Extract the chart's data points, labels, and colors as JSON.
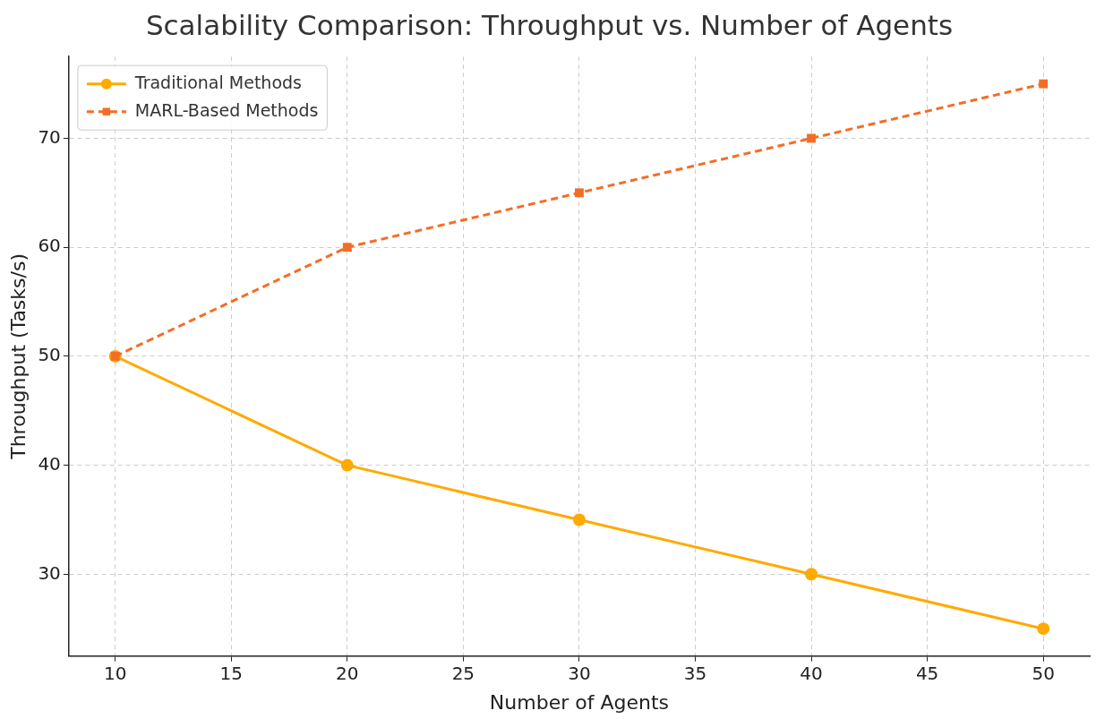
{
  "chart_data": {
    "type": "line",
    "title": "Scalability Comparison: Throughput vs. Number of Agents",
    "xlabel": "Number of Agents",
    "ylabel": "Throughput (Tasks/s)",
    "x": [
      10,
      20,
      30,
      40,
      50
    ],
    "series": [
      {
        "name": "Traditional Methods",
        "color": "#ffaa00",
        "values": [
          50,
          40,
          35,
          30,
          25
        ],
        "marker": "circle",
        "line_style": "solid"
      },
      {
        "name": "MARL-Based Methods",
        "color": "#f46d25",
        "values": [
          50,
          60,
          65,
          70,
          75
        ],
        "marker": "square",
        "line_style": "dashed"
      }
    ],
    "xlim": [
      8,
      52
    ],
    "xticks": [
      10,
      15,
      20,
      25,
      30,
      35,
      40,
      45,
      50
    ],
    "ylim": [
      22.5,
      77.5
    ],
    "yticks": [
      30,
      40,
      50,
      60,
      70
    ],
    "grid": true,
    "legend": "top left"
  }
}
